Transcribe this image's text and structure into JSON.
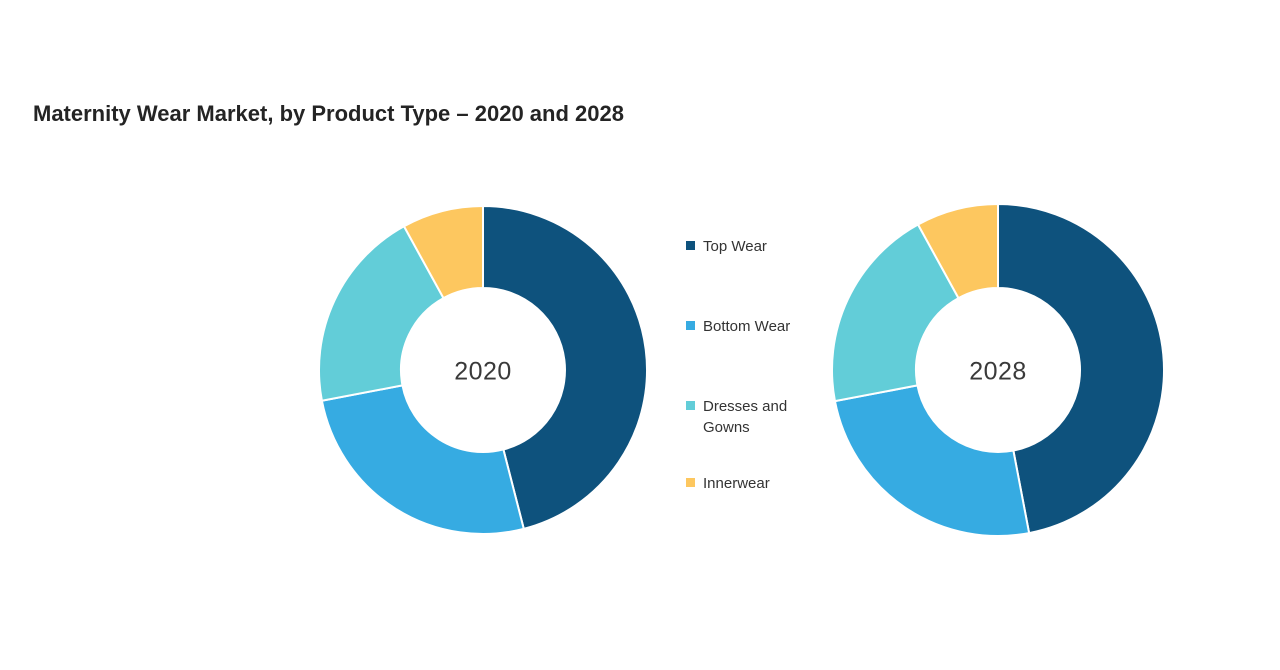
{
  "page": {
    "background": "#ffffff"
  },
  "title": {
    "text": "Maternity Wear Market, by Product Type – 2020 and 2028",
    "color": "#242424"
  },
  "legend": {
    "items": [
      {
        "label": "Top Wear",
        "color": "#0e527d"
      },
      {
        "label": "Bottom Wear",
        "color": "#36abe2"
      },
      {
        "label": "Dresses and Gowns",
        "color": "#62cdd8"
      },
      {
        "label": "Innerwear",
        "color": "#fdc75f"
      }
    ]
  },
  "chart_data": [
    {
      "type": "pie",
      "subtype": "donut",
      "center_label": "2020",
      "categories": [
        "Top Wear",
        "Bottom Wear",
        "Dresses and Gowns",
        "Innerwear"
      ],
      "values_percent": [
        46,
        26,
        20,
        8
      ],
      "colors": [
        "#0e527d",
        "#36abe2",
        "#62cdd8",
        "#fdc75f"
      ],
      "start_angle_deg": 0,
      "direction": "clockwise",
      "inner_radius_ratio": 0.5,
      "slice_divider_color": "#ffffff",
      "legend_position": "between-charts"
    },
    {
      "type": "pie",
      "subtype": "donut",
      "center_label": "2028",
      "categories": [
        "Top Wear",
        "Bottom Wear",
        "Dresses and Gowns",
        "Innerwear"
      ],
      "values_percent": [
        47,
        25,
        20,
        8
      ],
      "colors": [
        "#0e527d",
        "#36abe2",
        "#62cdd8",
        "#fdc75f"
      ],
      "start_angle_deg": 0,
      "direction": "clockwise",
      "inner_radius_ratio": 0.5,
      "slice_divider_color": "#ffffff",
      "legend_position": "between-charts"
    }
  ]
}
